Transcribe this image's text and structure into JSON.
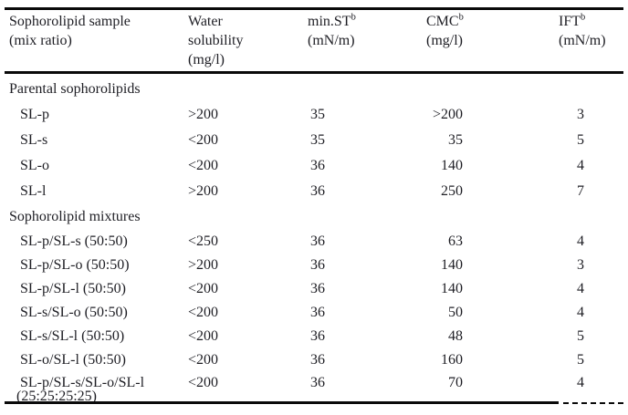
{
  "page": {
    "background": "#ffffff",
    "text_color": "#1e1e24",
    "rule_color": "#0a0a0a"
  },
  "table": {
    "headers": [
      {
        "title": "Sophorolipid sample",
        "sup": "",
        "sub": "(mix ratio)"
      },
      {
        "title": "Water solubility",
        "sup": "",
        "sub": "(mg/l)"
      },
      {
        "title": "min.ST",
        "sup": "b",
        "sub": "(mN/m)"
      },
      {
        "title": "CMC",
        "sup": "b",
        "sub": "(mg/l)"
      },
      {
        "title": "IFT",
        "sup": "b",
        "sub": "(mN/m)"
      }
    ],
    "sections": [
      {
        "title": "Parental sophorolipids",
        "rows": [
          {
            "sample": "SL-p",
            "water_solubility": ">200",
            "min_st": "35",
            "cmc": ">200",
            "ift": "3"
          },
          {
            "sample": "SL-s",
            "water_solubility": "<200",
            "min_st": "35",
            "cmc": "35",
            "ift": "5"
          },
          {
            "sample": "SL-o",
            "water_solubility": "<200",
            "min_st": "36",
            "cmc": "140",
            "ift": "4"
          },
          {
            "sample": "SL-l",
            "water_solubility": ">200",
            "min_st": "36",
            "cmc": "250",
            "ift": "7"
          }
        ]
      },
      {
        "title": "Sophorolipid mixtures",
        "rows": [
          {
            "sample": "SL-p/SL-s (50:50)",
            "water_solubility": "<250",
            "min_st": "36",
            "cmc": "63",
            "ift": "4"
          },
          {
            "sample": "SL-p/SL-o (50:50)",
            "water_solubility": ">200",
            "min_st": "36",
            "cmc": "140",
            "ift": "3"
          },
          {
            "sample": "SL-p/SL-l (50:50)",
            "water_solubility": "<200",
            "min_st": "36",
            "cmc": "140",
            "ift": "4"
          },
          {
            "sample": "SL-s/SL-o (50:50)",
            "water_solubility": "<200",
            "min_st": "36",
            "cmc": "50",
            "ift": "4"
          },
          {
            "sample": "SL-s/SL-l (50:50)",
            "water_solubility": "<200",
            "min_st": "36",
            "cmc": "48",
            "ift": "5"
          },
          {
            "sample": "SL-o/SL-l (50:50)",
            "water_solubility": "<200",
            "min_st": "36",
            "cmc": "160",
            "ift": "5"
          },
          {
            "sample": "SL-p/SL-s/SL-o/SL-l",
            "sample_line2": "(25:25:25:25)",
            "water_solubility": "<200",
            "min_st": "36",
            "cmc": "70",
            "ift": "4"
          }
        ]
      }
    ]
  }
}
